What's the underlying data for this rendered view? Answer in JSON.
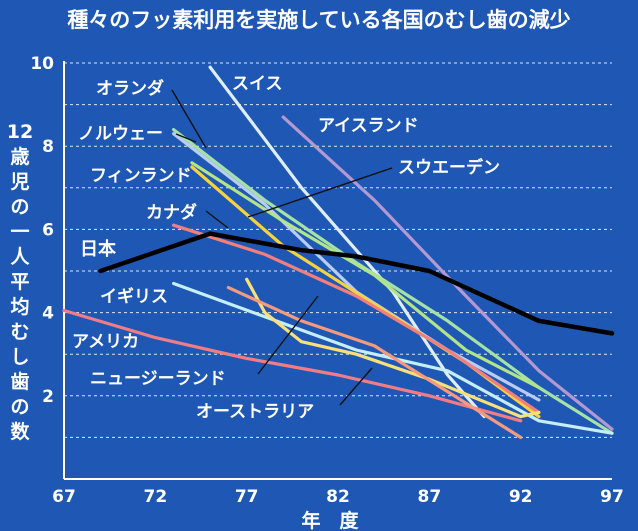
{
  "chart_data": {
    "type": "line",
    "title": "種々のフッ素利用を実施している各国のむし歯の減少",
    "ylabel": "12歳児の一人平均むし歯の数",
    "xlabel": "年　度",
    "xlim": [
      67,
      97
    ],
    "ylim": [
      0,
      10
    ],
    "x_ticks": [
      "67",
      "72",
      "77",
      "82",
      "87",
      "92",
      "97"
    ],
    "y_ticks": [
      "2",
      "4",
      "6",
      "8",
      "10"
    ],
    "grid": "dashed horizontal at every 1 unit",
    "series": [
      {
        "name": "スイス",
        "color": "#dfeefa",
        "points": [
          [
            75,
            9.9
          ],
          [
            80,
            7.0
          ],
          [
            85,
            4.5
          ],
          [
            88,
            2.5
          ],
          [
            90,
            1.5
          ]
        ]
      },
      {
        "name": "アイスランド",
        "color": "#b498d2",
        "points": [
          [
            79,
            8.7
          ],
          [
            84,
            6.7
          ],
          [
            89,
            4.4
          ],
          [
            93,
            2.6
          ],
          [
            97,
            1.2
          ]
        ]
      },
      {
        "name": "オランダ",
        "color": "#a6e2a6",
        "points": [
          [
            73,
            8.4
          ],
          [
            78,
            6.7
          ],
          [
            83,
            5.2
          ],
          [
            88,
            3.8
          ],
          [
            93,
            2.2
          ],
          [
            97,
            1.1
          ]
        ]
      },
      {
        "name": "ノルウェー",
        "color": "#b9ccf5",
        "points": [
          [
            73,
            8.3
          ],
          [
            78,
            6.6
          ],
          [
            83,
            4.5
          ],
          [
            88,
            3.1
          ],
          [
            93,
            1.9
          ]
        ]
      },
      {
        "name": "フィンランド",
        "color": "#f6d23f",
        "points": [
          [
            74,
            7.5
          ],
          [
            79,
            5.6
          ],
          [
            84,
            4.2
          ],
          [
            89,
            2.8
          ],
          [
            93,
            1.5
          ]
        ]
      },
      {
        "name": "スウエーデン",
        "color": "#b3e48a",
        "points": [
          [
            74,
            7.6
          ],
          [
            79,
            6.2
          ],
          [
            84,
            4.9
          ],
          [
            89,
            3.1
          ],
          [
            93,
            2.2
          ]
        ]
      },
      {
        "name": "カナダ",
        "color": "#f27f7c",
        "points": [
          [
            73,
            6.1
          ],
          [
            78,
            5.4
          ],
          [
            83,
            4.4
          ],
          [
            88,
            3.1
          ],
          [
            93,
            1.6
          ]
        ]
      },
      {
        "name": "日本",
        "color": "#000000",
        "points": [
          [
            69,
            5.0
          ],
          [
            75,
            5.9
          ],
          [
            80,
            5.5
          ],
          [
            83,
            5.35
          ],
          [
            87,
            5.0
          ],
          [
            93,
            3.8
          ],
          [
            97,
            3.5
          ]
        ]
      },
      {
        "name": "イギリス",
        "color": "#c6eef8",
        "points": [
          [
            73,
            4.7
          ],
          [
            78,
            3.9
          ],
          [
            83,
            3.1
          ],
          [
            88,
            2.6
          ],
          [
            93,
            1.4
          ],
          [
            97,
            1.1
          ]
        ]
      },
      {
        "name": "アメリカ",
        "color": "#f07d86",
        "points": [
          [
            67,
            4.05
          ],
          [
            72,
            3.4
          ],
          [
            77,
            2.9
          ],
          [
            82,
            2.5
          ],
          [
            87,
            2.0
          ],
          [
            92,
            1.4
          ]
        ]
      },
      {
        "name": "ニュージーランド",
        "color": "#f9e07a",
        "points": [
          [
            77,
            4.8
          ],
          [
            78,
            4.0
          ],
          [
            80,
            3.3
          ],
          [
            83,
            3.0
          ],
          [
            87,
            2.4
          ],
          [
            92,
            1.5
          ],
          [
            93,
            1.6
          ]
        ]
      },
      {
        "name": "オーストラリア",
        "color": "#f59a7c",
        "points": [
          [
            76,
            4.6
          ],
          [
            80,
            3.8
          ],
          [
            84,
            3.2
          ],
          [
            88,
            2.1
          ],
          [
            92,
            1.0
          ]
        ]
      }
    ]
  }
}
